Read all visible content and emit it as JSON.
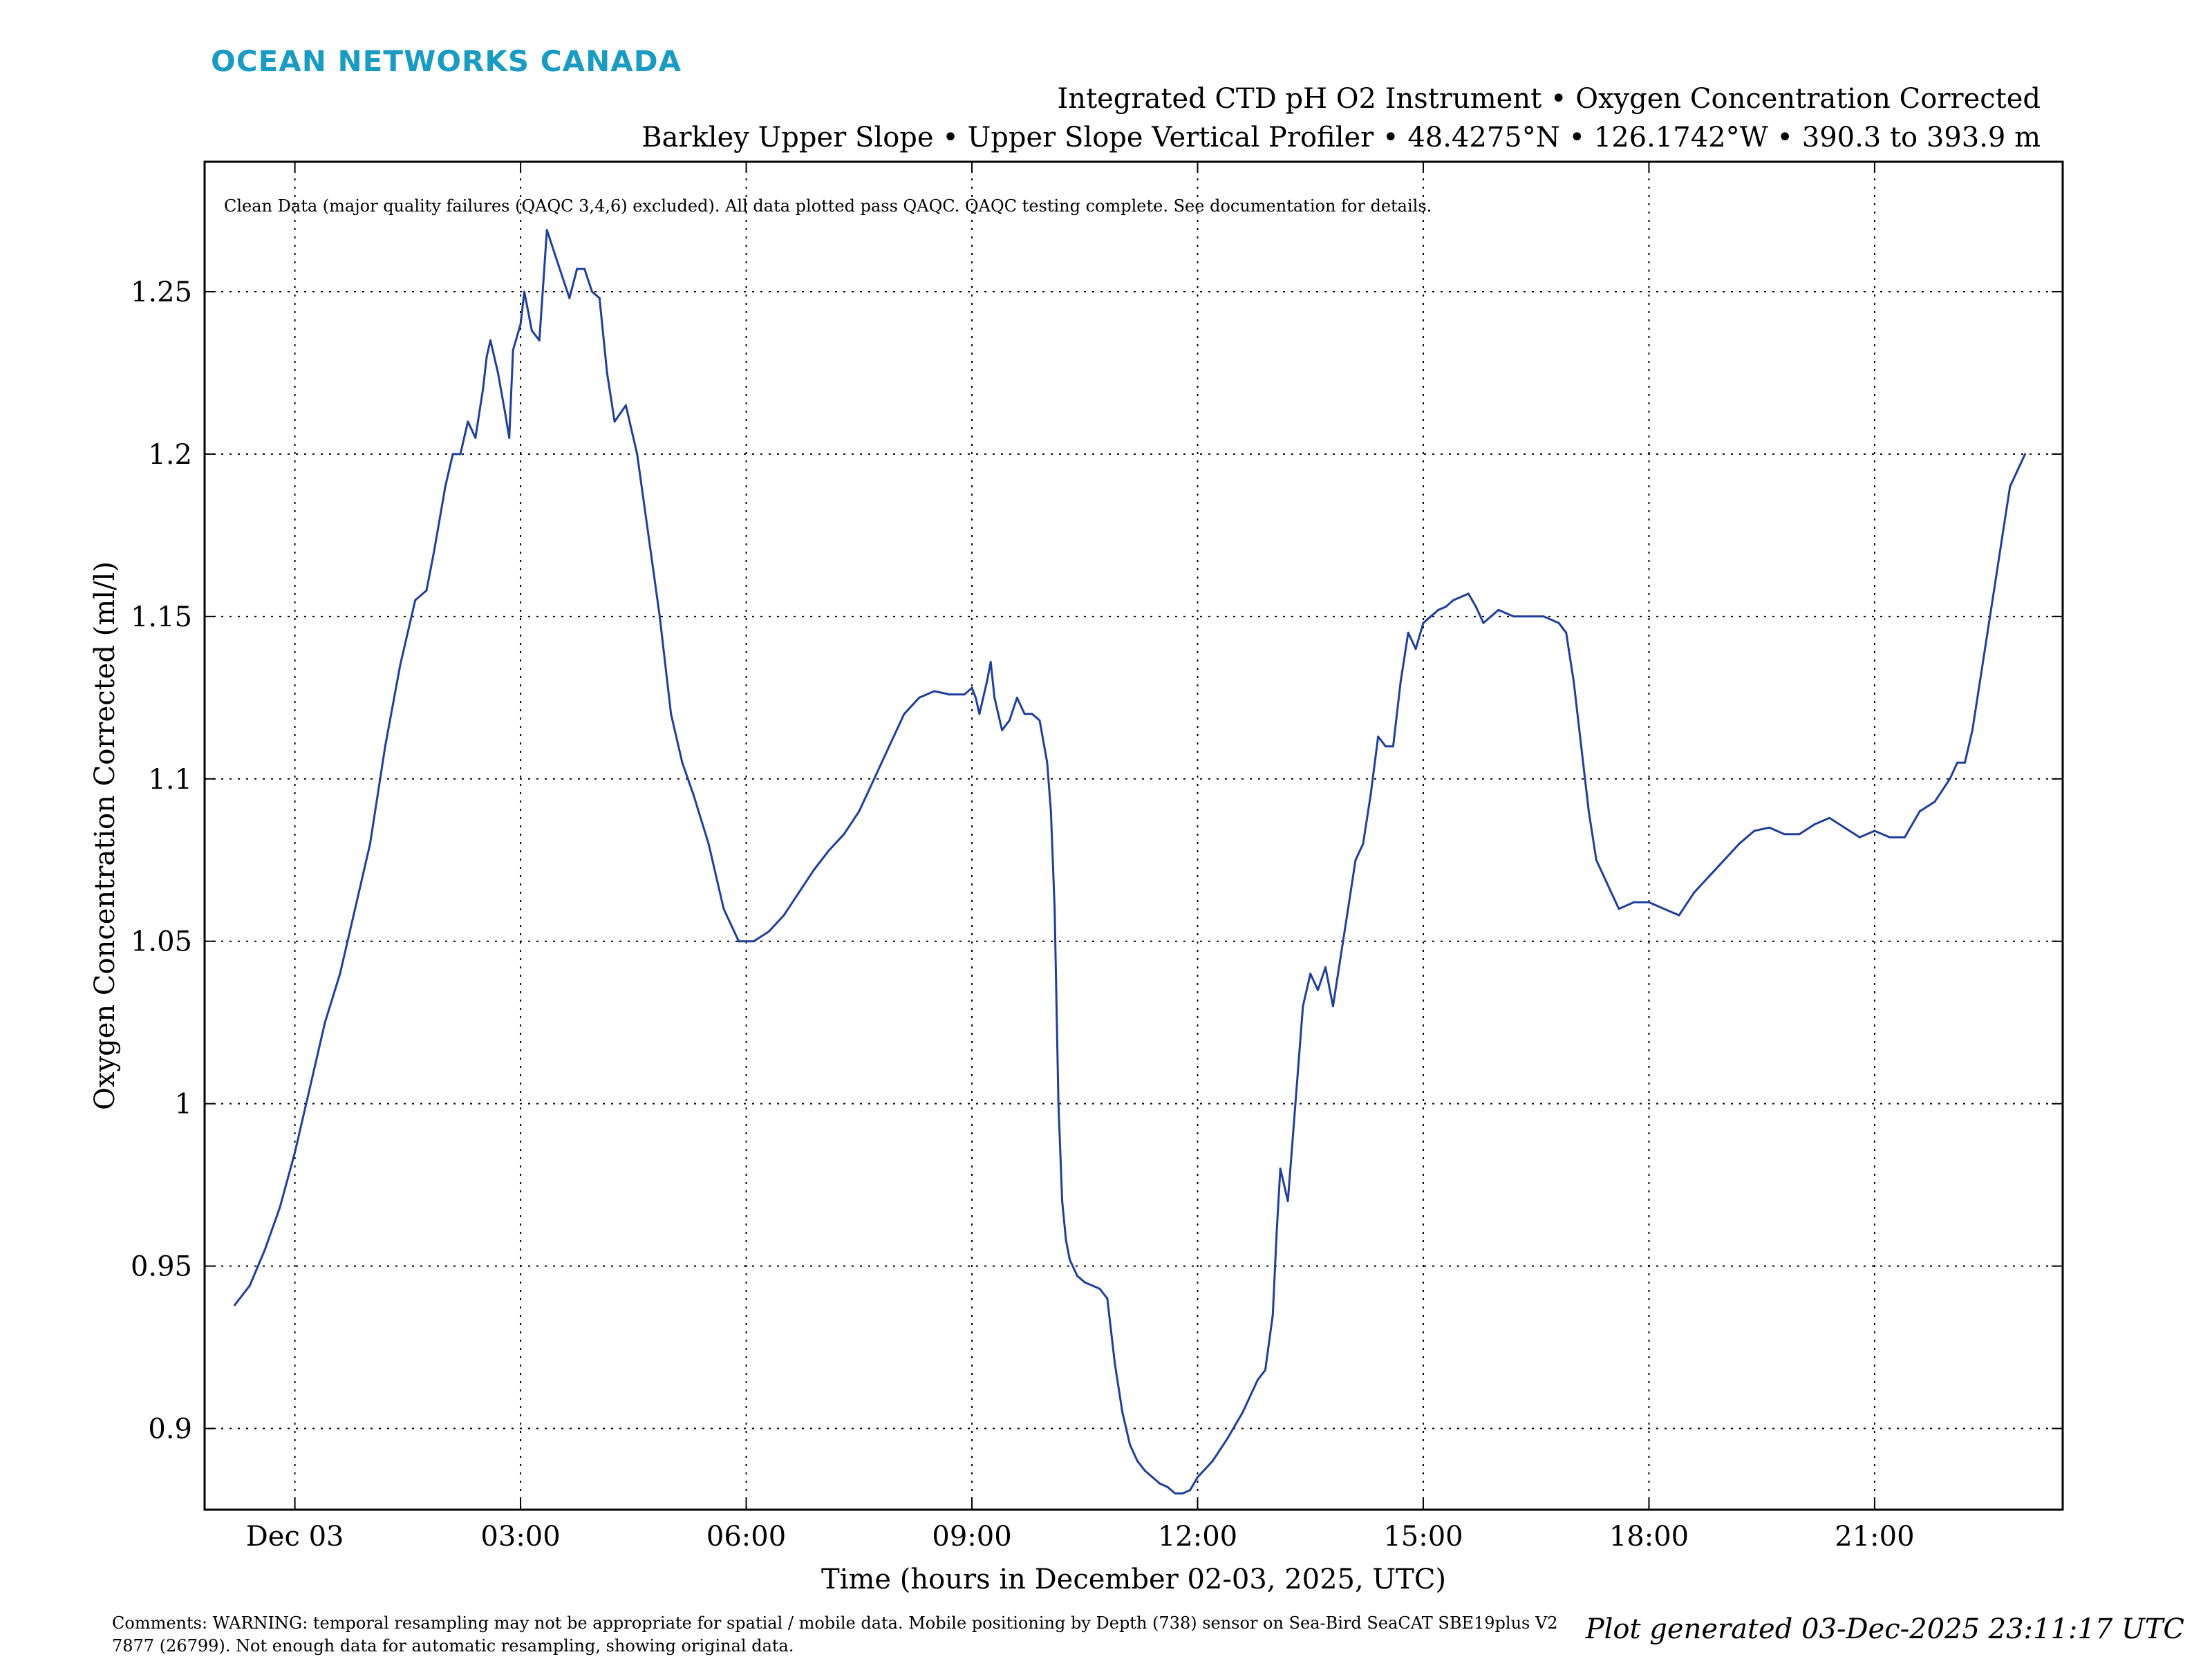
{
  "header": {
    "brand": "OCEAN NETWORKS CANADA",
    "brand_color": "#1a9bc2",
    "title_line1": "Integrated CTD pH O2 Instrument • Oxygen Concentration Corrected",
    "title_line2": "Barkley Upper Slope • Upper Slope Vertical Profiler • 48.4275°N • 126.1742°W • 390.3 to 393.9 m"
  },
  "footer": {
    "comments_line1": "Comments: WARNING: temporal resampling may not be appropriate for spatial / mobile data. Mobile positioning by Depth (738) sensor on Sea-Bird SeaCAT SBE19plus V2",
    "comments_line2": "7877 (26799). Not enough data for automatic resampling, showing original data.",
    "generated": "Plot generated 03-Dec-2025 23:11:17 UTC"
  },
  "chart_data": {
    "type": "line",
    "annotation": "Clean Data (major quality failures (QAQC 3,4,6) excluded). All data plotted pass QAQC. QAQC testing complete. See documentation for details.",
    "xlabel": "Time (hours in December 02-03, 2025, UTC)",
    "ylabel": "Oxygen Concentration Corrected (ml/l)",
    "x_unit": "hours after Dec 03 00:00 UTC",
    "xlim": [
      -1.2,
      23.5
    ],
    "ylim": [
      0.875,
      1.29
    ],
    "grid": true,
    "grid_style": "dotted",
    "line_color": "#1f3f9a",
    "x_ticks": [
      {
        "value": 0,
        "label": "Dec 03"
      },
      {
        "value": 3,
        "label": "03:00"
      },
      {
        "value": 6,
        "label": "06:00"
      },
      {
        "value": 9,
        "label": "09:00"
      },
      {
        "value": 12,
        "label": "12:00"
      },
      {
        "value": 15,
        "label": "15:00"
      },
      {
        "value": 18,
        "label": "18:00"
      },
      {
        "value": 21,
        "label": "21:00"
      }
    ],
    "y_ticks": [
      {
        "value": 0.9,
        "label": "0.9"
      },
      {
        "value": 0.95,
        "label": "0.95"
      },
      {
        "value": 1.0,
        "label": "1"
      },
      {
        "value": 1.05,
        "label": "1.05"
      },
      {
        "value": 1.1,
        "label": "1.1"
      },
      {
        "value": 1.15,
        "label": "1.15"
      },
      {
        "value": 1.2,
        "label": "1.2"
      },
      {
        "value": 1.25,
        "label": "1.25"
      }
    ],
    "series": [
      {
        "x": [
          -0.8,
          -0.6,
          -0.4,
          -0.2,
          0.0,
          0.2,
          0.4,
          0.6,
          0.8,
          1.0,
          1.2,
          1.4,
          1.6,
          1.75,
          1.85,
          2.0,
          2.1,
          2.2,
          2.3,
          2.4,
          2.5,
          2.55,
          2.6,
          2.7,
          2.8,
          2.85,
          2.9,
          3.0,
          3.05,
          3.15,
          3.25,
          3.35,
          3.45,
          3.55,
          3.65,
          3.75,
          3.85,
          3.95,
          4.05,
          4.15,
          4.25,
          4.4,
          4.55,
          4.7,
          4.85,
          5.0,
          5.15,
          5.3,
          5.5,
          5.7,
          5.9,
          6.0,
          6.1,
          6.3,
          6.5,
          6.7,
          6.9,
          7.1,
          7.3,
          7.5,
          7.7,
          7.9,
          8.1,
          8.3,
          8.5,
          8.7,
          8.9,
          9.0,
          9.05,
          9.1,
          9.2,
          9.25,
          9.3,
          9.4,
          9.5,
          9.6,
          9.7,
          9.8,
          9.9,
          10.0,
          10.05,
          10.1,
          10.15,
          10.2,
          10.25,
          10.3,
          10.4,
          10.5,
          10.6,
          10.7,
          10.8,
          10.9,
          11.0,
          11.1,
          11.2,
          11.3,
          11.4,
          11.5,
          11.6,
          11.7,
          11.8,
          11.9,
          12.0,
          12.2,
          12.4,
          12.6,
          12.8,
          12.9,
          13.0,
          13.05,
          13.1,
          13.2,
          13.3,
          13.4,
          13.5,
          13.6,
          13.7,
          13.8,
          13.9,
          14.0,
          14.1,
          14.2,
          14.3,
          14.4,
          14.5,
          14.6,
          14.7,
          14.8,
          14.9,
          15.0,
          15.1,
          15.2,
          15.3,
          15.4,
          15.5,
          15.6,
          15.7,
          15.8,
          15.9,
          16.0,
          16.2,
          16.4,
          16.6,
          16.8,
          16.9,
          17.0,
          17.1,
          17.2,
          17.3,
          17.4,
          17.5,
          17.6,
          17.8,
          18.0,
          18.2,
          18.4,
          18.6,
          18.8,
          19.0,
          19.2,
          19.4,
          19.6,
          19.8,
          20.0,
          20.2,
          20.4,
          20.6,
          20.8,
          21.0,
          21.2,
          21.4,
          21.6,
          21.8,
          22.0,
          22.1,
          22.2,
          22.3,
          22.4,
          22.5,
          22.6,
          22.7,
          22.8,
          22.9,
          23.0
        ],
        "y": [
          0.938,
          0.944,
          0.955,
          0.968,
          0.985,
          1.005,
          1.025,
          1.04,
          1.06,
          1.08,
          1.11,
          1.135,
          1.155,
          1.158,
          1.17,
          1.19,
          1.2,
          1.2,
          1.21,
          1.205,
          1.22,
          1.23,
          1.235,
          1.225,
          1.212,
          1.205,
          1.232,
          1.24,
          1.25,
          1.238,
          1.235,
          1.269,
          1.262,
          1.255,
          1.248,
          1.257,
          1.257,
          1.25,
          1.248,
          1.225,
          1.21,
          1.215,
          1.2,
          1.175,
          1.15,
          1.12,
          1.105,
          1.095,
          1.08,
          1.06,
          1.05,
          1.05,
          1.05,
          1.053,
          1.058,
          1.065,
          1.072,
          1.078,
          1.083,
          1.09,
          1.1,
          1.11,
          1.12,
          1.125,
          1.127,
          1.126,
          1.126,
          1.128,
          1.125,
          1.12,
          1.13,
          1.136,
          1.125,
          1.115,
          1.118,
          1.125,
          1.12,
          1.12,
          1.118,
          1.105,
          1.09,
          1.06,
          1.0,
          0.97,
          0.958,
          0.952,
          0.947,
          0.945,
          0.944,
          0.943,
          0.94,
          0.92,
          0.905,
          0.895,
          0.89,
          0.887,
          0.885,
          0.883,
          0.882,
          0.88,
          0.88,
          0.881,
          0.885,
          0.89,
          0.897,
          0.905,
          0.915,
          0.918,
          0.935,
          0.96,
          0.98,
          0.97,
          1.0,
          1.03,
          1.04,
          1.035,
          1.042,
          1.03,
          1.045,
          1.06,
          1.075,
          1.08,
          1.095,
          1.113,
          1.11,
          1.11,
          1.13,
          1.145,
          1.14,
          1.148,
          1.15,
          1.152,
          1.153,
          1.155,
          1.156,
          1.157,
          1.153,
          1.148,
          1.15,
          1.152,
          1.15,
          1.15,
          1.15,
          1.148,
          1.145,
          1.13,
          1.11,
          1.09,
          1.075,
          1.07,
          1.065,
          1.06,
          1.062,
          1.062,
          1.06,
          1.058,
          1.065,
          1.07,
          1.075,
          1.08,
          1.084,
          1.085,
          1.083,
          1.083,
          1.086,
          1.088,
          1.085,
          1.082,
          1.084,
          1.082,
          1.082,
          1.09,
          1.093,
          1.1,
          1.105,
          1.105,
          1.115,
          1.13,
          1.145,
          1.16,
          1.175,
          1.19,
          1.195,
          1.2
        ]
      }
    ]
  }
}
